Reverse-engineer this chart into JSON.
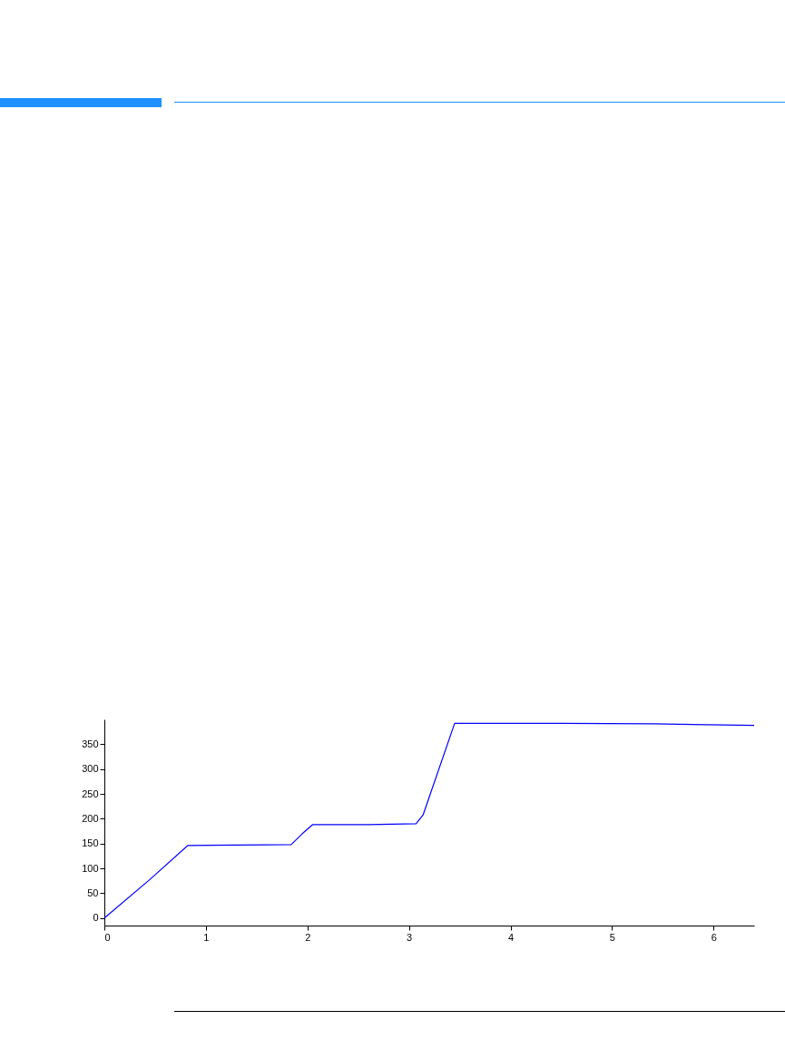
{
  "chart_data": {
    "type": "line",
    "x": [
      0,
      0.45,
      0.82,
      1.3,
      1.84,
      1.95,
      2.05,
      2.6,
      3.07,
      3.14,
      3.45,
      4.5,
      5.4,
      6.4
    ],
    "series": [
      {
        "color": "#0000ff",
        "values": [
          0,
          78,
          146,
          147,
          148,
          170,
          188,
          188,
          190,
          208,
          392,
          392,
          391,
          388
        ]
      }
    ],
    "xlim": [
      0,
      6.4
    ],
    "ylim": [
      -15,
      400
    ],
    "xticks": [
      0,
      1,
      2,
      3,
      4,
      5,
      6
    ],
    "yticks": [
      0,
      50,
      100,
      150,
      200,
      250,
      300,
      350
    ],
    "grid": false
  }
}
